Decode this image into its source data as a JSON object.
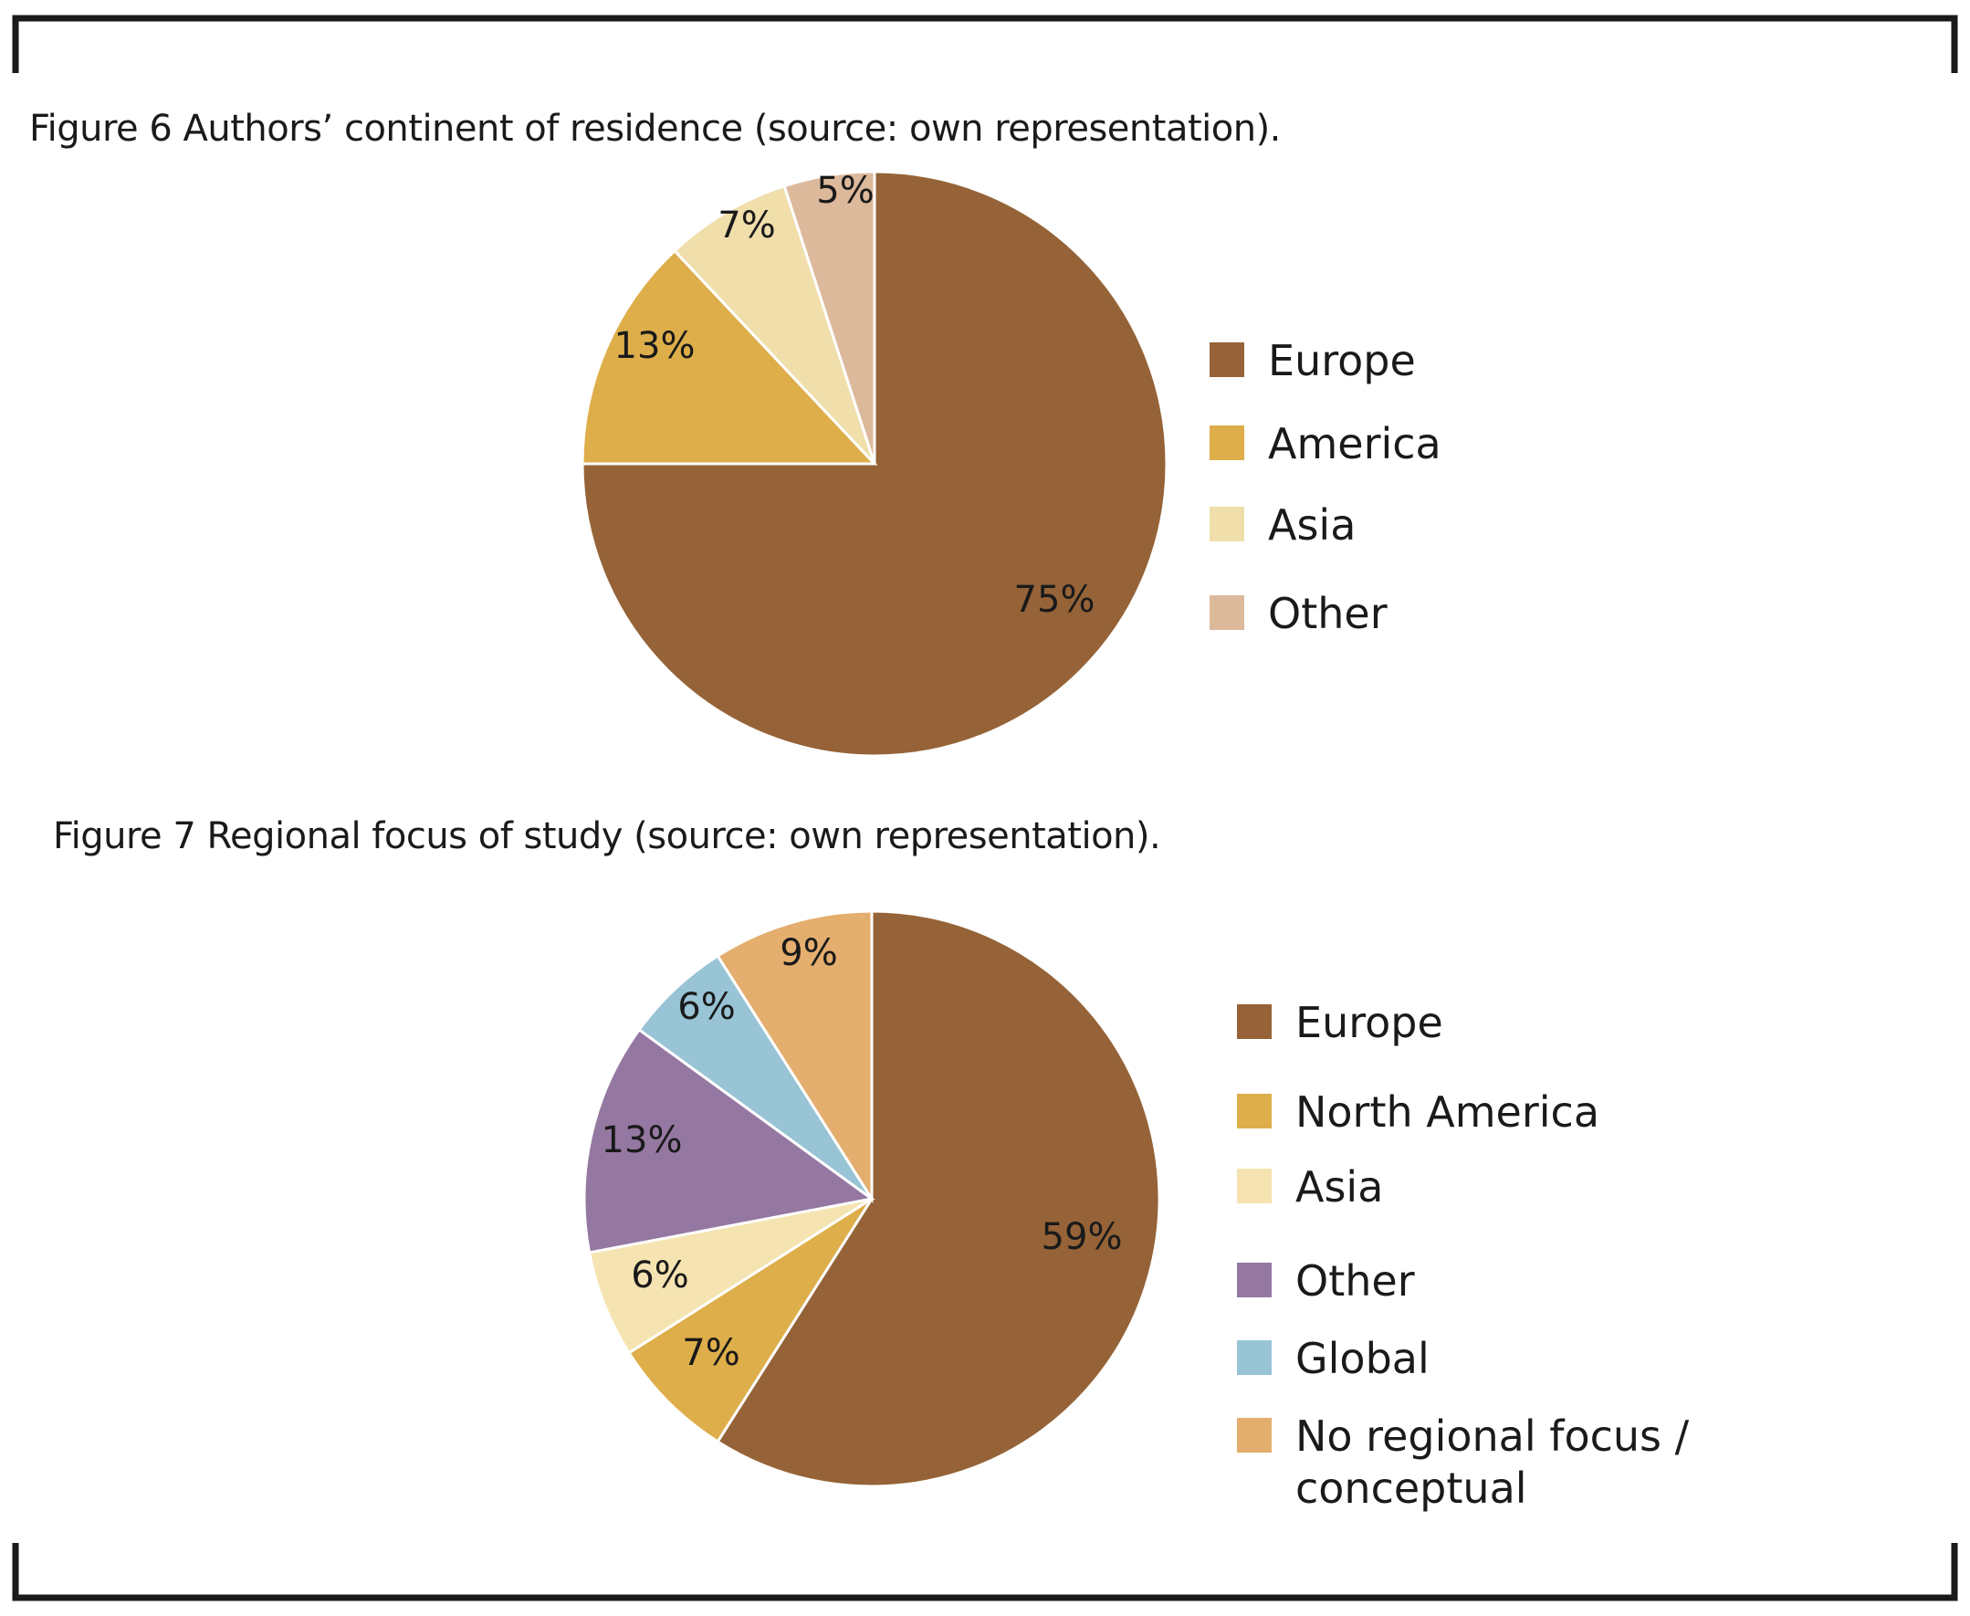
{
  "chart_data": [
    {
      "type": "pie",
      "title": "Figure 6 Authors’ continent of residence (source: own representation).",
      "categories": [
        "Europe",
        "America",
        "Asia",
        "Other"
      ],
      "values": [
        75,
        13,
        7,
        5
      ],
      "labels": [
        "75%",
        "13%",
        "7%",
        "5%"
      ],
      "colors": [
        "#956337",
        "#ddae4a",
        "#f0dfab",
        "#ddb99c"
      ],
      "legend": "right"
    },
    {
      "type": "pie",
      "title": "Figure 7  Regional focus of study (source: own representation).",
      "categories": [
        "Europe",
        "North America",
        "Asia",
        "Other",
        "Global",
        "No regional focus / conceptual"
      ],
      "values": [
        59,
        7,
        6,
        13,
        6,
        9
      ],
      "labels": [
        "59%",
        "7%",
        "6%",
        "13%",
        "6%",
        "9%"
      ],
      "colors": [
        "#956337",
        "#ddae4a",
        "#f5e4b1",
        "#9578a2",
        "#98c4d5",
        "#e4ae6e"
      ],
      "legend_labels": [
        "Europe",
        "North America",
        "Asia",
        "Other",
        "Global",
        "No regional focus /\nconceptual"
      ],
      "legend": "right"
    }
  ]
}
